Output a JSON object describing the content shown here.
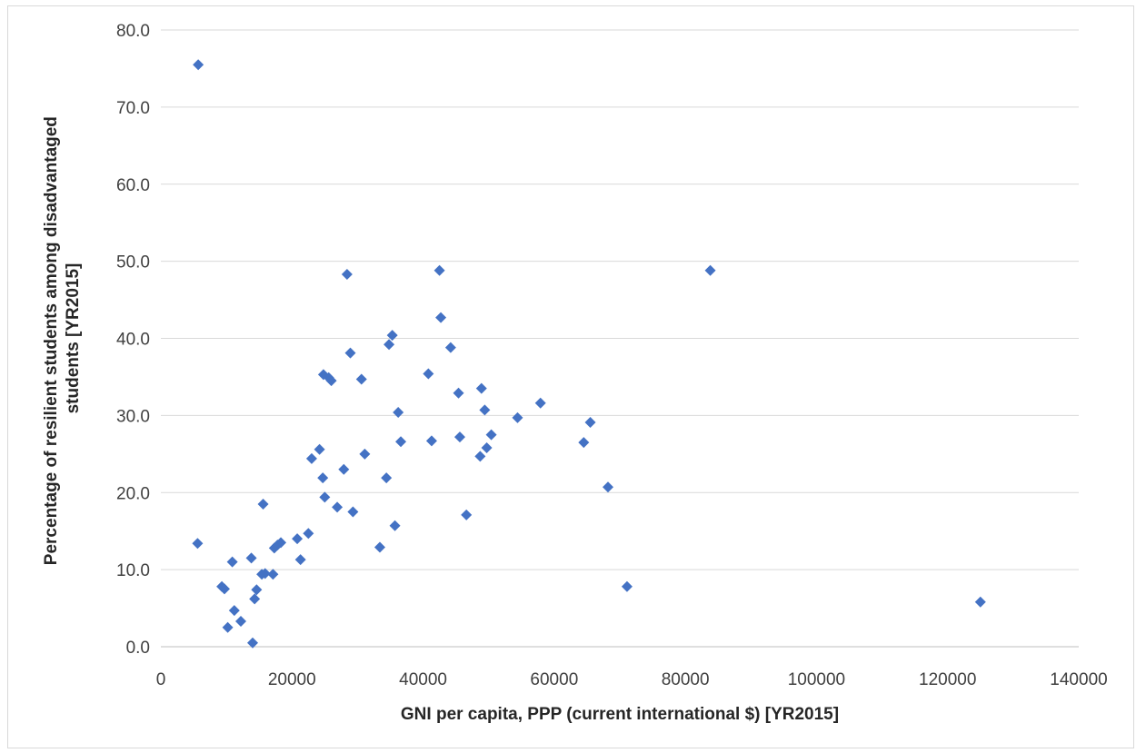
{
  "chart_data": {
    "type": "scatter",
    "title": "",
    "xlabel": "GNI per capita, PPP (current international $) [YR2015]",
    "ylabel_lines": [
      "Percentage of resilient students among disadvantaged",
      "students [YR2015]"
    ],
    "xlim": [
      0,
      140000
    ],
    "ylim": [
      0,
      80
    ],
    "x_ticks": [
      "0",
      "20000",
      "40000",
      "60000",
      "80000",
      "100000",
      "120000",
      "140000"
    ],
    "y_ticks": [
      "0.0",
      "10.0",
      "20.0",
      "30.0",
      "40.0",
      "50.0",
      "60.0",
      "70.0",
      "80.0"
    ],
    "grid": "horizontal",
    "legend": "none",
    "marker": "diamond",
    "marker_color": "#4472c4",
    "points": [
      [
        5700,
        75.5
      ],
      [
        5600,
        13.4
      ],
      [
        9300,
        7.8
      ],
      [
        9700,
        7.5
      ],
      [
        10200,
        2.5
      ],
      [
        10900,
        11.0
      ],
      [
        11200,
        4.7
      ],
      [
        12200,
        3.3
      ],
      [
        13800,
        11.5
      ],
      [
        14000,
        0.5
      ],
      [
        14300,
        6.2
      ],
      [
        14600,
        7.4
      ],
      [
        15400,
        9.4
      ],
      [
        15600,
        18.5
      ],
      [
        15900,
        9.5
      ],
      [
        17100,
        9.4
      ],
      [
        17300,
        12.8
      ],
      [
        17800,
        13.2
      ],
      [
        18300,
        13.5
      ],
      [
        20800,
        14.0
      ],
      [
        21300,
        11.3
      ],
      [
        22500,
        14.7
      ],
      [
        23000,
        24.4
      ],
      [
        24200,
        25.6
      ],
      [
        24700,
        21.9
      ],
      [
        24800,
        35.3
      ],
      [
        25000,
        19.4
      ],
      [
        25600,
        34.9
      ],
      [
        26000,
        34.5
      ],
      [
        26900,
        18.1
      ],
      [
        27900,
        23.0
      ],
      [
        28400,
        48.3
      ],
      [
        28900,
        38.1
      ],
      [
        29300,
        17.5
      ],
      [
        30600,
        34.7
      ],
      [
        31100,
        25.0
      ],
      [
        33400,
        12.9
      ],
      [
        34400,
        21.9
      ],
      [
        34800,
        39.2
      ],
      [
        35300,
        40.4
      ],
      [
        35700,
        15.7
      ],
      [
        36200,
        30.4
      ],
      [
        36600,
        26.6
      ],
      [
        40800,
        35.4
      ],
      [
        41300,
        26.7
      ],
      [
        42500,
        48.8
      ],
      [
        42700,
        42.7
      ],
      [
        44200,
        38.8
      ],
      [
        45400,
        32.9
      ],
      [
        45600,
        27.2
      ],
      [
        46600,
        17.1
      ],
      [
        48700,
        24.7
      ],
      [
        48900,
        33.5
      ],
      [
        49400,
        30.7
      ],
      [
        49700,
        25.8
      ],
      [
        50400,
        27.5
      ],
      [
        54400,
        29.7
      ],
      [
        57900,
        31.6
      ],
      [
        64500,
        26.5
      ],
      [
        65500,
        29.1
      ],
      [
        68200,
        20.7
      ],
      [
        71100,
        7.8
      ],
      [
        83800,
        48.8
      ],
      [
        125000,
        5.8
      ]
    ]
  }
}
